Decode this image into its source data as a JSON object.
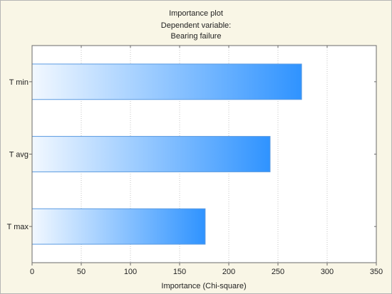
{
  "colors": {
    "background": "#f9f6e6",
    "plot_background": "#ffffff",
    "plot_frame": "#6a6a6a",
    "outer_border": "#b5b5b5",
    "bar_fill_start": "#f2f8ff",
    "bar_fill_end": "#2f93ff",
    "bar_border": "#5a9ae0",
    "gridline": "#c4c4c4",
    "text": "#222222"
  },
  "chart_data": {
    "type": "bar",
    "orientation": "horizontal",
    "title": "Importance plot",
    "subtitle_lines": [
      "Dependent variable:",
      "Bearing failure"
    ],
    "categories": [
      "T min",
      "T avg",
      "T max"
    ],
    "values": [
      274,
      242,
      176
    ],
    "xlabel": "Importance (Chi-square)",
    "ylabel": "",
    "xlim": [
      0,
      350
    ],
    "xticks": [
      0,
      50,
      100,
      150,
      200,
      250,
      300,
      350
    ],
    "grid": true
  }
}
